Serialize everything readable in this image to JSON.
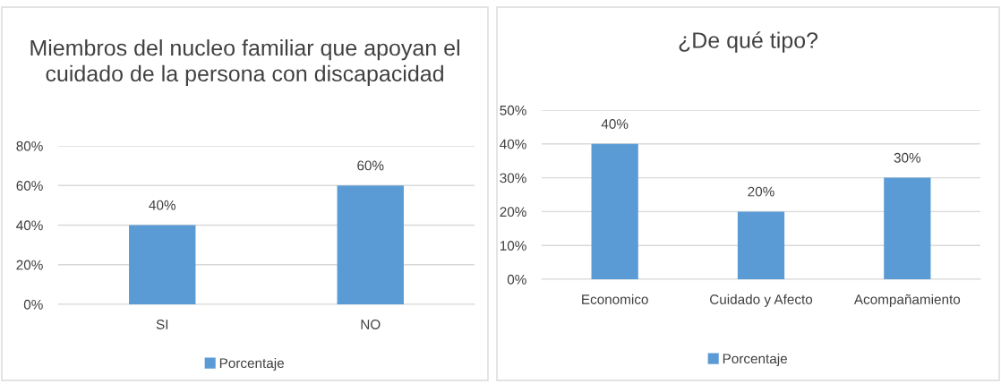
{
  "chart_data": [
    {
      "type": "bar",
      "title": "Miembros del nucleo familiar que apoyan el cuidado de la persona con discapacidad",
      "categories": [
        "SI",
        "NO"
      ],
      "series": [
        {
          "name": "Porcentaje",
          "color": "#5b9bd5",
          "values": [
            40,
            60
          ],
          "value_labels": [
            "40%",
            "60%"
          ]
        }
      ],
      "ylim": [
        0,
        80
      ],
      "yticks": [
        {
          "value": 0,
          "label": "0%"
        },
        {
          "value": 20,
          "label": "20%"
        },
        {
          "value": 40,
          "label": "40%"
        },
        {
          "value": 60,
          "label": "60%"
        },
        {
          "value": 80,
          "label": "80%"
        }
      ],
      "grid": "y",
      "legend": "bottom"
    },
    {
      "type": "bar",
      "title": "¿De qué tipo?",
      "categories": [
        "Economico",
        "Cuidado y Afecto",
        "Acompañamiento"
      ],
      "series": [
        {
          "name": "Porcentaje",
          "color": "#5b9bd5",
          "values": [
            40,
            20,
            30
          ],
          "value_labels": [
            "40%",
            "20%",
            "30%"
          ]
        }
      ],
      "ylim": [
        0,
        50
      ],
      "yticks": [
        {
          "value": 0,
          "label": "0%"
        },
        {
          "value": 10,
          "label": "10%"
        },
        {
          "value": 20,
          "label": "20%"
        },
        {
          "value": 30,
          "label": "30%"
        },
        {
          "value": 40,
          "label": "40%"
        },
        {
          "value": 50,
          "label": "50%"
        }
      ],
      "grid": "y",
      "legend": "bottom"
    }
  ]
}
